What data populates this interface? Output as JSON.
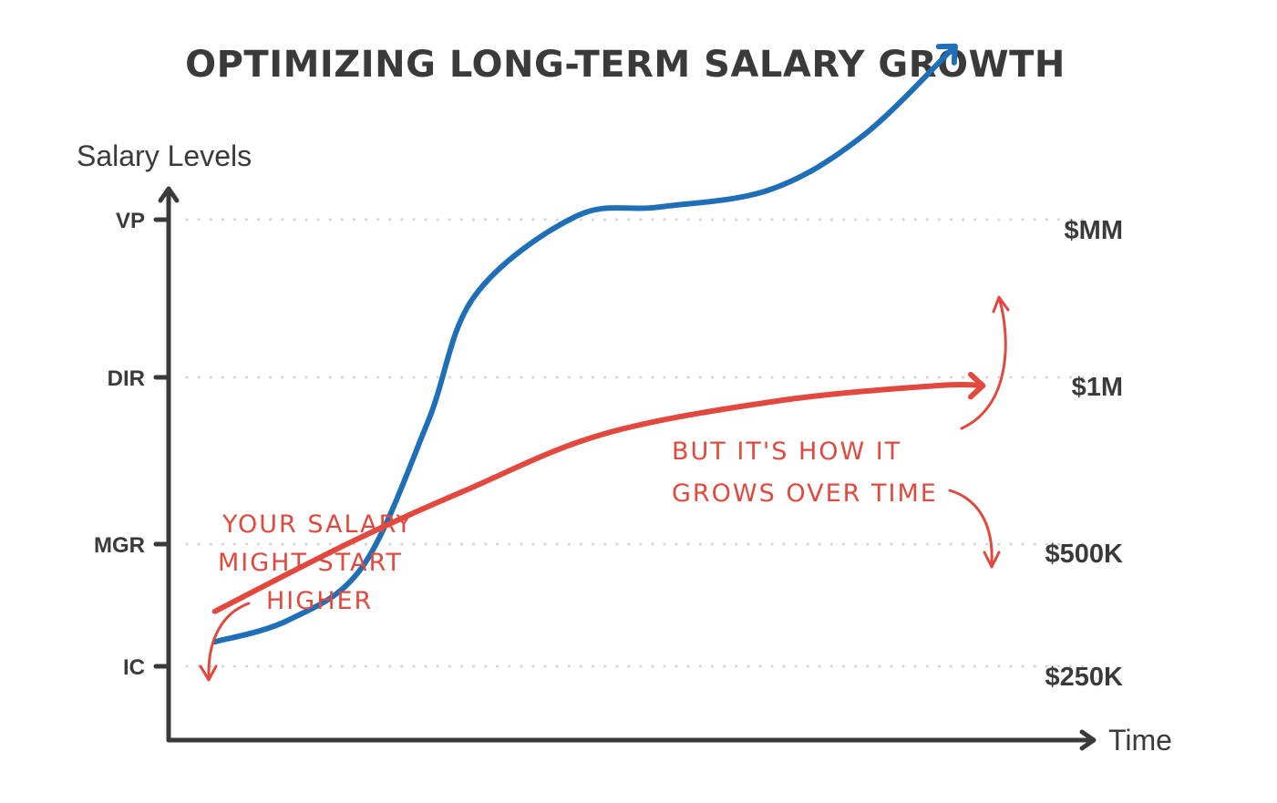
{
  "chart_data": {
    "type": "line",
    "title": "OPTIMIZING LONG-TERM SALARY GROWTH",
    "xlabel": "Time",
    "ylabel": "Salary Levels",
    "y_levels": [
      "IC",
      "MGR",
      "DIR",
      "VP"
    ],
    "salary_labels": [
      "$250K",
      "$500K",
      "$1M",
      "$MM"
    ],
    "grid": "dotted horizontal lines at each level",
    "series": [
      {
        "name": "",
        "color": "#1f6fb8",
        "points": [
          [
            0.05,
            0.2
          ],
          [
            0.13,
            0.38
          ],
          [
            0.21,
            0.82
          ],
          [
            0.28,
            1.73
          ],
          [
            0.33,
            2.51
          ],
          [
            0.44,
            3.02
          ],
          [
            0.53,
            3.08
          ],
          [
            0.65,
            3.19
          ],
          [
            0.75,
            3.53
          ],
          [
            0.85,
            4.1
          ]
        ]
      },
      {
        "name": "",
        "color": "#e2483d",
        "points": [
          [
            0.05,
            0.45
          ],
          [
            0.2,
            1.02
          ],
          [
            0.32,
            1.32
          ],
          [
            0.47,
            1.66
          ],
          [
            0.66,
            1.86
          ],
          [
            0.83,
            1.95
          ],
          [
            0.88,
            1.95
          ]
        ]
      }
    ],
    "annotations": [
      {
        "lines": [
          "YOUR SALARY",
          "MIGHT START",
          "HIGHER"
        ],
        "color": "#e2483d"
      },
      {
        "lines": [
          "BUT IT'S HOW IT",
          "GROWS OVER TIME"
        ],
        "color": "#e2483d"
      }
    ]
  },
  "colors": {
    "axis": "#3a3a3a",
    "grid": "#d4d4d4",
    "blue_series": "#1f6fb8",
    "red_series": "#e2483d"
  }
}
